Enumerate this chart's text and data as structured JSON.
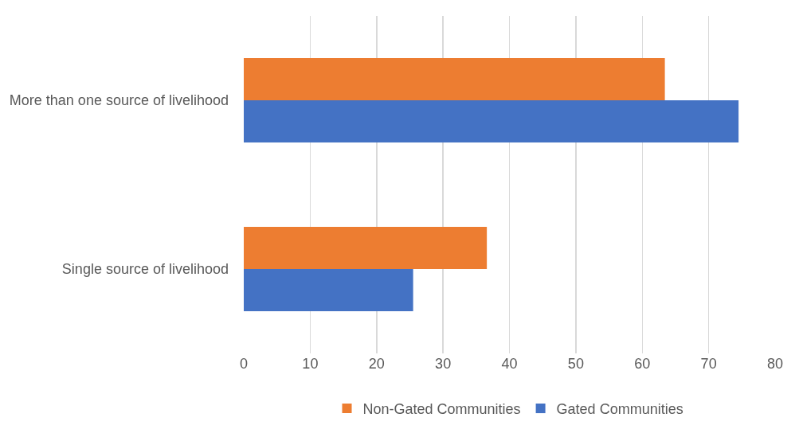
{
  "chart_data": {
    "type": "bar",
    "orientation": "horizontal",
    "categories": [
      "More than one source of livelihood",
      "Single source of livelihood"
    ],
    "series": [
      {
        "name": "Non-Gated Communities",
        "color": "#ed7d31",
        "values": [
          63.4,
          36.6
        ]
      },
      {
        "name": "Gated Communities",
        "color": "#4472c4",
        "values": [
          74.5,
          25.5
        ]
      }
    ],
    "xlim": [
      0,
      80
    ],
    "xticks": [
      0,
      10,
      20,
      30,
      40,
      50,
      60,
      70,
      80
    ],
    "grid": "x",
    "legend": "bottom"
  }
}
